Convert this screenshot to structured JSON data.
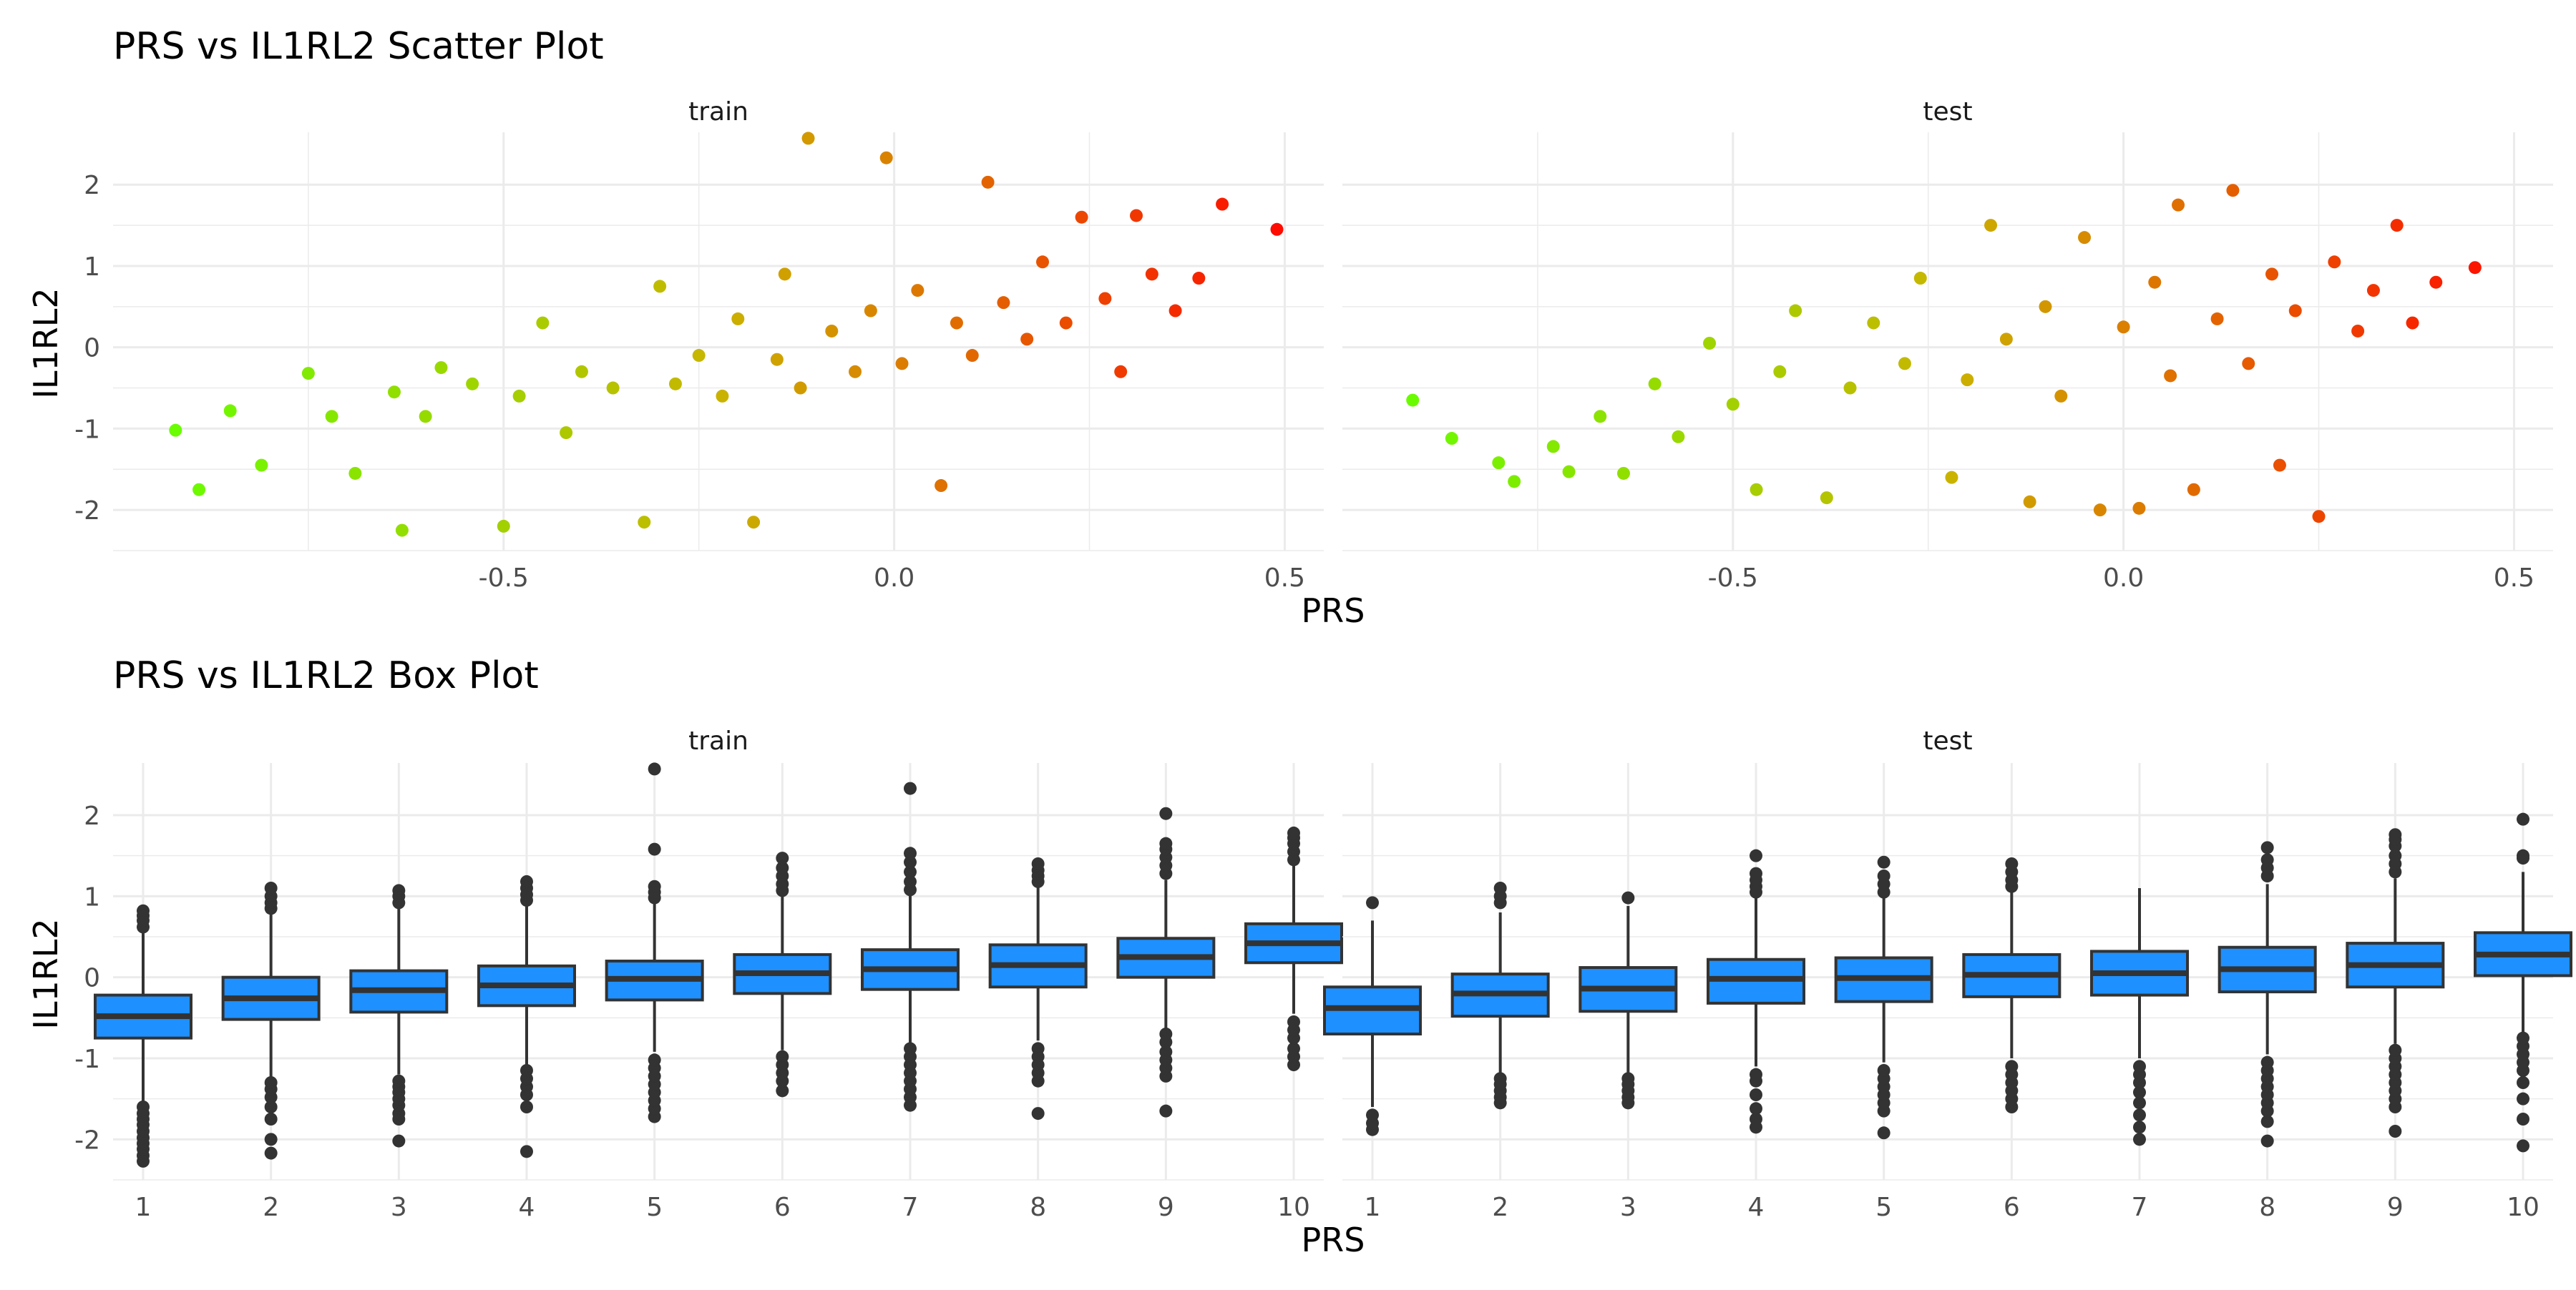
{
  "sections": [
    {
      "title": "PRS vs IL1RL2 Scatter Plot",
      "xlabel": "PRS",
      "ylabel": "IL1RL2"
    },
    {
      "title": "PRS vs IL1RL2 Box Plot",
      "xlabel": "PRS",
      "ylabel": "IL1RL2"
    }
  ],
  "colors": {
    "low": "#66ff00",
    "mid": "#c9b400",
    "high": "#ff0a00",
    "box_fill": "#1e90ff",
    "box_line": "#333333",
    "grid": "#ebebeb",
    "text": "#4d4d4d"
  },
  "chart_data": [
    {
      "type": "scatter",
      "title": "PRS vs IL1RL2 Scatter Plot",
      "xlabel": "PRS",
      "ylabel": "IL1RL2",
      "xlim": [
        -1.0,
        0.55
      ],
      "ylim": [
        -2.5,
        2.6
      ],
      "xticks": [
        "-0.5",
        "0.0",
        "0.5"
      ],
      "yticks": [
        "-2",
        "-1",
        "0",
        "1",
        "2"
      ],
      "grid": true,
      "color_scale": "PRS value, green (low) to red (high)",
      "facets": [
        {
          "name": "train",
          "points": [
            {
              "x": -0.92,
              "y": -1.02
            },
            {
              "x": -0.89,
              "y": -1.75
            },
            {
              "x": -0.85,
              "y": -0.78
            },
            {
              "x": -0.81,
              "y": -1.45
            },
            {
              "x": -0.75,
              "y": -0.32
            },
            {
              "x": -0.72,
              "y": -0.85
            },
            {
              "x": -0.69,
              "y": -1.55
            },
            {
              "x": -0.64,
              "y": -0.55
            },
            {
              "x": -0.63,
              "y": -2.25
            },
            {
              "x": -0.6,
              "y": -0.85
            },
            {
              "x": -0.58,
              "y": -0.25
            },
            {
              "x": -0.54,
              "y": -0.45
            },
            {
              "x": -0.5,
              "y": -2.2
            },
            {
              "x": -0.48,
              "y": -0.6
            },
            {
              "x": -0.45,
              "y": 0.3
            },
            {
              "x": -0.42,
              "y": -1.05
            },
            {
              "x": -0.4,
              "y": -0.3
            },
            {
              "x": -0.36,
              "y": -0.5
            },
            {
              "x": -0.32,
              "y": -2.15
            },
            {
              "x": -0.3,
              "y": 0.75
            },
            {
              "x": -0.28,
              "y": -0.45
            },
            {
              "x": -0.25,
              "y": -0.1
            },
            {
              "x": -0.22,
              "y": -0.6
            },
            {
              "x": -0.2,
              "y": 0.35
            },
            {
              "x": -0.18,
              "y": -2.15
            },
            {
              "x": -0.15,
              "y": -0.15
            },
            {
              "x": -0.14,
              "y": 0.9
            },
            {
              "x": -0.12,
              "y": -0.5
            },
            {
              "x": -0.11,
              "y": 2.57
            },
            {
              "x": -0.08,
              "y": 0.2
            },
            {
              "x": -0.05,
              "y": -0.3
            },
            {
              "x": -0.03,
              "y": 0.45
            },
            {
              "x": -0.01,
              "y": 2.33
            },
            {
              "x": 0.01,
              "y": -0.2
            },
            {
              "x": 0.03,
              "y": 0.7
            },
            {
              "x": 0.06,
              "y": -1.7
            },
            {
              "x": 0.08,
              "y": 0.3
            },
            {
              "x": 0.1,
              "y": -0.1
            },
            {
              "x": 0.12,
              "y": 2.03
            },
            {
              "x": 0.14,
              "y": 0.55
            },
            {
              "x": 0.17,
              "y": 0.1
            },
            {
              "x": 0.19,
              "y": 1.05
            },
            {
              "x": 0.22,
              "y": 0.3
            },
            {
              "x": 0.24,
              "y": 1.6
            },
            {
              "x": 0.27,
              "y": 0.6
            },
            {
              "x": 0.29,
              "y": -0.3
            },
            {
              "x": 0.31,
              "y": 1.62
            },
            {
              "x": 0.33,
              "y": 0.9
            },
            {
              "x": 0.36,
              "y": 0.45
            },
            {
              "x": 0.39,
              "y": 0.85
            },
            {
              "x": 0.42,
              "y": 1.76
            },
            {
              "x": 0.49,
              "y": 1.45
            }
          ]
        },
        {
          "name": "test",
          "points": [
            {
              "x": -0.91,
              "y": -0.65
            },
            {
              "x": -0.86,
              "y": -1.12
            },
            {
              "x": -0.8,
              "y": -1.42
            },
            {
              "x": -0.78,
              "y": -1.65
            },
            {
              "x": -0.73,
              "y": -1.22
            },
            {
              "x": -0.71,
              "y": -1.53
            },
            {
              "x": -0.67,
              "y": -0.85
            },
            {
              "x": -0.64,
              "y": -1.55
            },
            {
              "x": -0.6,
              "y": -0.45
            },
            {
              "x": -0.57,
              "y": -1.1
            },
            {
              "x": -0.53,
              "y": 0.05
            },
            {
              "x": -0.5,
              "y": -0.7
            },
            {
              "x": -0.47,
              "y": -1.75
            },
            {
              "x": -0.44,
              "y": -0.3
            },
            {
              "x": -0.42,
              "y": 0.45
            },
            {
              "x": -0.38,
              "y": -1.85
            },
            {
              "x": -0.35,
              "y": -0.5
            },
            {
              "x": -0.32,
              "y": 0.3
            },
            {
              "x": -0.28,
              "y": -0.2
            },
            {
              "x": -0.26,
              "y": 0.85
            },
            {
              "x": -0.22,
              "y": -1.6
            },
            {
              "x": -0.2,
              "y": -0.4
            },
            {
              "x": -0.17,
              "y": 1.5
            },
            {
              "x": -0.15,
              "y": 0.1
            },
            {
              "x": -0.12,
              "y": -1.9
            },
            {
              "x": -0.1,
              "y": 0.5
            },
            {
              "x": -0.08,
              "y": -0.6
            },
            {
              "x": -0.05,
              "y": 1.35
            },
            {
              "x": -0.03,
              "y": -2.0
            },
            {
              "x": 0.0,
              "y": 0.25
            },
            {
              "x": 0.02,
              "y": -1.98
            },
            {
              "x": 0.04,
              "y": 0.8
            },
            {
              "x": 0.06,
              "y": -0.35
            },
            {
              "x": 0.07,
              "y": 1.75
            },
            {
              "x": 0.09,
              "y": -1.75
            },
            {
              "x": 0.12,
              "y": 0.35
            },
            {
              "x": 0.14,
              "y": 1.93
            },
            {
              "x": 0.16,
              "y": -0.2
            },
            {
              "x": 0.19,
              "y": 0.9
            },
            {
              "x": 0.2,
              "y": -1.45
            },
            {
              "x": 0.22,
              "y": 0.45
            },
            {
              "x": 0.25,
              "y": -2.08
            },
            {
              "x": 0.27,
              "y": 1.05
            },
            {
              "x": 0.3,
              "y": 0.2
            },
            {
              "x": 0.32,
              "y": 0.7
            },
            {
              "x": 0.35,
              "y": 1.5
            },
            {
              "x": 0.37,
              "y": 0.3
            },
            {
              "x": 0.4,
              "y": 0.8
            },
            {
              "x": 0.45,
              "y": 0.98
            }
          ]
        }
      ]
    },
    {
      "type": "box",
      "title": "PRS vs IL1RL2 Box Plot",
      "xlabel": "PRS",
      "ylabel": "IL1RL2",
      "categories": [
        "1",
        "2",
        "3",
        "4",
        "5",
        "6",
        "7",
        "8",
        "9",
        "10"
      ],
      "ylim": [
        -2.5,
        2.6
      ],
      "yticks": [
        "-2",
        "-1",
        "0",
        "1",
        "2"
      ],
      "grid": true,
      "facets": [
        {
          "name": "train",
          "boxes": [
            {
              "q1": -0.75,
              "median": -0.48,
              "q3": -0.22,
              "whisker_low": -1.55,
              "whisker_high": 0.57,
              "outliers": [
                -2.27,
                -2.2,
                -2.12,
                -2.05,
                -1.98,
                -1.9,
                -1.82,
                -1.75,
                -1.68,
                -1.6,
                0.62,
                0.7,
                0.76,
                0.82
              ]
            },
            {
              "q1": -0.52,
              "median": -0.26,
              "q3": 0.0,
              "whisker_low": -1.25,
              "whisker_high": 0.78,
              "outliers": [
                -2.17,
                -2.0,
                -1.75,
                -1.6,
                -1.48,
                -1.38,
                -1.3,
                0.85,
                0.92,
                1.0,
                1.1
              ]
            },
            {
              "q1": -0.43,
              "median": -0.16,
              "q3": 0.08,
              "whisker_low": -1.2,
              "whisker_high": 0.86,
              "outliers": [
                -2.02,
                -1.75,
                -1.68,
                -1.58,
                -1.5,
                -1.42,
                -1.35,
                -1.28,
                0.92,
                1.0,
                1.07
              ]
            },
            {
              "q1": -0.35,
              "median": -0.1,
              "q3": 0.14,
              "whisker_low": -1.08,
              "whisker_high": 0.88,
              "outliers": [
                -2.15,
                -1.6,
                -1.45,
                -1.35,
                -1.25,
                -1.15,
                0.95,
                1.02,
                1.1,
                1.18
              ]
            },
            {
              "q1": -0.28,
              "median": -0.02,
              "q3": 0.2,
              "whisker_low": -0.92,
              "whisker_high": 0.93,
              "outliers": [
                -1.72,
                -1.62,
                -1.52,
                -1.42,
                -1.32,
                -1.22,
                -1.12,
                -1.02,
                0.98,
                1.05,
                1.12,
                1.58,
                2.57
              ]
            },
            {
              "q1": -0.2,
              "median": 0.05,
              "q3": 0.28,
              "whisker_low": -0.9,
              "whisker_high": 1.0,
              "outliers": [
                -1.4,
                -1.28,
                -1.18,
                -1.08,
                -0.98,
                1.07,
                1.15,
                1.25,
                1.35,
                1.47
              ]
            },
            {
              "q1": -0.15,
              "median": 0.1,
              "q3": 0.34,
              "whisker_low": -0.82,
              "whisker_high": 1.03,
              "outliers": [
                -1.58,
                -1.48,
                -1.38,
                -1.28,
                -1.18,
                -1.08,
                -0.98,
                -0.88,
                1.08,
                1.18,
                1.3,
                1.42,
                1.53,
                2.33
              ]
            },
            {
              "q1": -0.12,
              "median": 0.15,
              "q3": 0.4,
              "whisker_low": -0.78,
              "whisker_high": 1.13,
              "outliers": [
                -1.68,
                -1.28,
                -1.18,
                -1.08,
                -0.98,
                -0.88,
                1.18,
                1.25,
                1.32,
                1.4
              ]
            },
            {
              "q1": 0.0,
              "median": 0.25,
              "q3": 0.48,
              "whisker_low": -0.65,
              "whisker_high": 1.2,
              "outliers": [
                -1.65,
                -1.22,
                -1.12,
                -1.02,
                -0.92,
                -0.8,
                -0.7,
                1.28,
                1.38,
                1.48,
                1.58,
                1.65,
                2.02
              ]
            },
            {
              "q1": 0.18,
              "median": 0.42,
              "q3": 0.66,
              "whisker_low": -0.45,
              "whisker_high": 1.4,
              "outliers": [
                -1.08,
                -0.98,
                -0.88,
                -0.75,
                -0.65,
                -0.55,
                1.45,
                1.55,
                1.65,
                1.72,
                1.78
              ]
            }
          ]
        },
        {
          "name": "test",
          "boxes": [
            {
              "q1": -0.7,
              "median": -0.38,
              "q3": -0.12,
              "whisker_low": -1.6,
              "whisker_high": 0.7,
              "outliers": [
                -1.88,
                -1.8,
                -1.7,
                0.92
              ]
            },
            {
              "q1": -0.48,
              "median": -0.2,
              "q3": 0.04,
              "whisker_low": -1.2,
              "whisker_high": 0.8,
              "outliers": [
                -1.55,
                -1.48,
                -1.4,
                -1.32,
                -1.25,
                0.92,
                1.0,
                1.1
              ]
            },
            {
              "q1": -0.42,
              "median": -0.14,
              "q3": 0.12,
              "whisker_low": -1.2,
              "whisker_high": 0.88,
              "outliers": [
                -1.55,
                -1.48,
                -1.4,
                -1.32,
                -1.25,
                0.98
              ]
            },
            {
              "q1": -0.32,
              "median": -0.02,
              "q3": 0.22,
              "whisker_low": -1.1,
              "whisker_high": 1.0,
              "outliers": [
                -1.85,
                -1.75,
                -1.62,
                -1.45,
                -1.28,
                -1.2,
                1.05,
                1.12,
                1.2,
                1.28,
                1.5
              ]
            },
            {
              "q1": -0.3,
              "median": -0.01,
              "q3": 0.24,
              "whisker_low": -1.05,
              "whisker_high": 1.0,
              "outliers": [
                -1.92,
                -1.65,
                -1.55,
                -1.45,
                -1.35,
                -1.25,
                -1.15,
                1.05,
                1.15,
                1.25,
                1.42
              ]
            },
            {
              "q1": -0.24,
              "median": 0.03,
              "q3": 0.28,
              "whisker_low": -1.0,
              "whisker_high": 1.05,
              "outliers": [
                -1.6,
                -1.5,
                -1.4,
                -1.3,
                -1.2,
                -1.1,
                1.12,
                1.2,
                1.3,
                1.4
              ]
            },
            {
              "q1": -0.22,
              "median": 0.05,
              "q3": 0.32,
              "whisker_low": -1.0,
              "whisker_high": 1.1,
              "outliers": [
                -2.0,
                -1.85,
                -1.7,
                -1.55,
                -1.42,
                -1.3,
                -1.2,
                -1.1
              ]
            },
            {
              "q1": -0.18,
              "median": 0.1,
              "q3": 0.37,
              "whisker_low": -0.95,
              "whisker_high": 1.15,
              "outliers": [
                -2.02,
                -1.78,
                -1.65,
                -1.55,
                -1.45,
                -1.35,
                -1.25,
                -1.15,
                -1.05,
                1.25,
                1.35,
                1.45,
                1.6
              ]
            },
            {
              "q1": -0.12,
              "median": 0.15,
              "q3": 0.42,
              "whisker_low": -0.82,
              "whisker_high": 1.22,
              "outliers": [
                -1.9,
                -1.6,
                -1.5,
                -1.4,
                -1.3,
                -1.2,
                -1.1,
                -1.0,
                -0.9,
                1.3,
                1.4,
                1.5,
                1.62,
                1.7,
                1.76
              ]
            },
            {
              "q1": 0.02,
              "median": 0.28,
              "q3": 0.55,
              "whisker_low": -0.68,
              "whisker_high": 1.3,
              "outliers": [
                -2.08,
                -1.75,
                -1.5,
                -1.3,
                -1.15,
                -1.05,
                -0.95,
                -0.85,
                -0.75,
                1.47,
                1.5,
                1.95
              ]
            }
          ]
        }
      ]
    }
  ]
}
